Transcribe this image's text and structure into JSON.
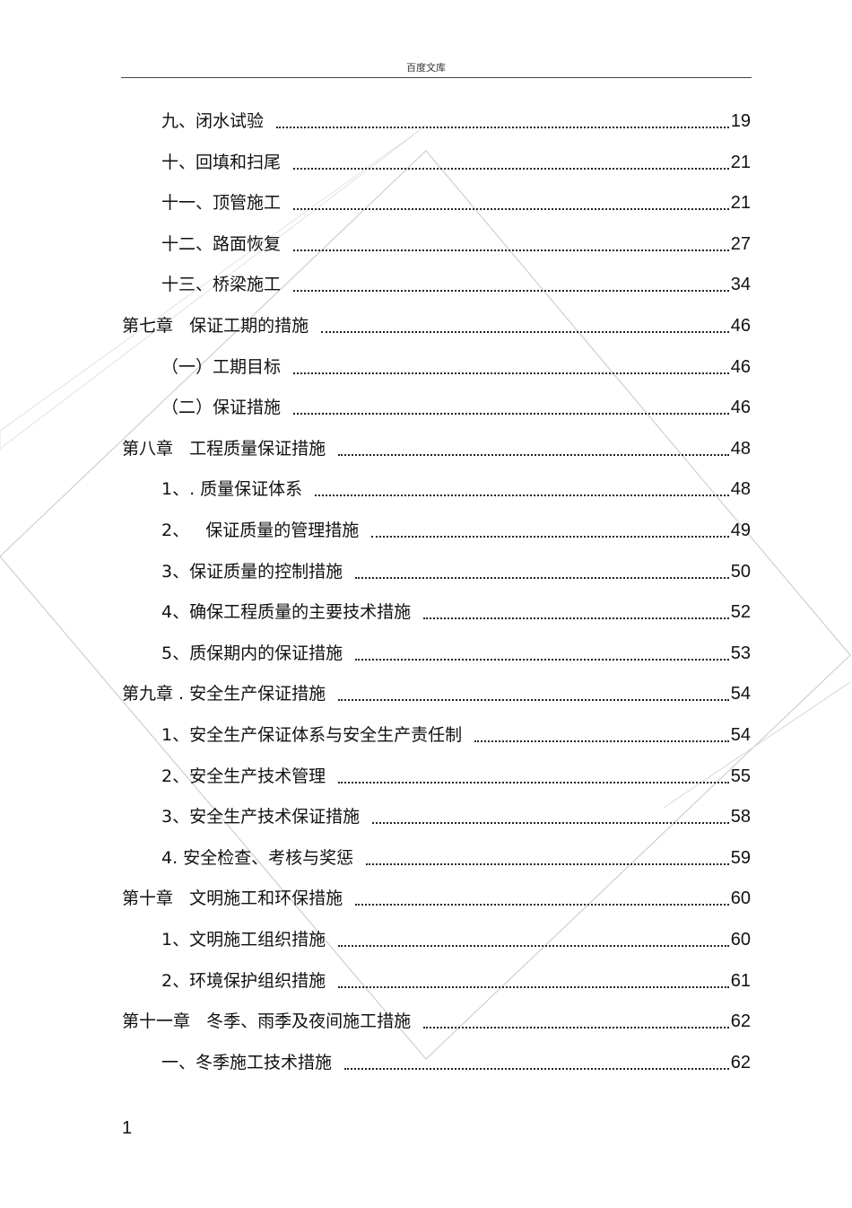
{
  "header": {
    "title": "百度文库"
  },
  "toc": [
    {
      "label": "九、闭水试验",
      "page": "19",
      "level": 2
    },
    {
      "label": "十、回填和扫尾",
      "page": "21",
      "level": 2
    },
    {
      "label": "十一、顶管施工",
      "page": "21",
      "level": 2
    },
    {
      "label": "十二、路面恢复",
      "page": "27",
      "level": 2
    },
    {
      "label": "十三、桥梁施工",
      "page": "34",
      "level": 2
    },
    {
      "label": "第七章   保证工期的措施",
      "page": "46",
      "level": 1
    },
    {
      "label": "（一）工期目标",
      "page": "46",
      "level": 2
    },
    {
      "label": "（二）保证措施",
      "page": "46",
      "level": 2
    },
    {
      "label": "第八章   工程质量保证措施",
      "page": "48",
      "level": 1
    },
    {
      "label": "1、. 质量保证体系",
      "page": "48",
      "level": 2
    },
    {
      "label": "2、   保证质量的管理措施",
      "page": "49",
      "level": 2
    },
    {
      "label": "3、保证质量的控制措施",
      "page": "50",
      "level": 2
    },
    {
      "label": "4、确保工程质量的主要技术措施",
      "page": "52",
      "level": 2
    },
    {
      "label": "5、质保期内的保证措施",
      "page": "53",
      "level": 2
    },
    {
      "label": "第九章 . 安全生产保证措施",
      "page": "54",
      "level": 1
    },
    {
      "label": "1、安全生产保证体系与安全生产责任制",
      "page": "54",
      "level": 2
    },
    {
      "label": "2、安全生产技术管理",
      "page": "55",
      "level": 2
    },
    {
      "label": "3、安全生产技术保证措施",
      "page": "58",
      "level": 2
    },
    {
      "label": "4. 安全检查、考核与奖惩",
      "page": "59",
      "level": 2
    },
    {
      "label": "第十章   文明施工和环保措施",
      "page": "60",
      "level": 1
    },
    {
      "label": "1、文明施工组织措施",
      "page": "60",
      "level": 2
    },
    {
      "label": "2、环境保护组织措施",
      "page": "61",
      "level": 2
    },
    {
      "label": "第十一章   冬季、雨季及夜间施工措施",
      "page": "62",
      "level": 1
    },
    {
      "label": "一、冬季施工技术措施",
      "page": "62",
      "level": 2
    }
  ],
  "footer": {
    "page_number": "1"
  }
}
